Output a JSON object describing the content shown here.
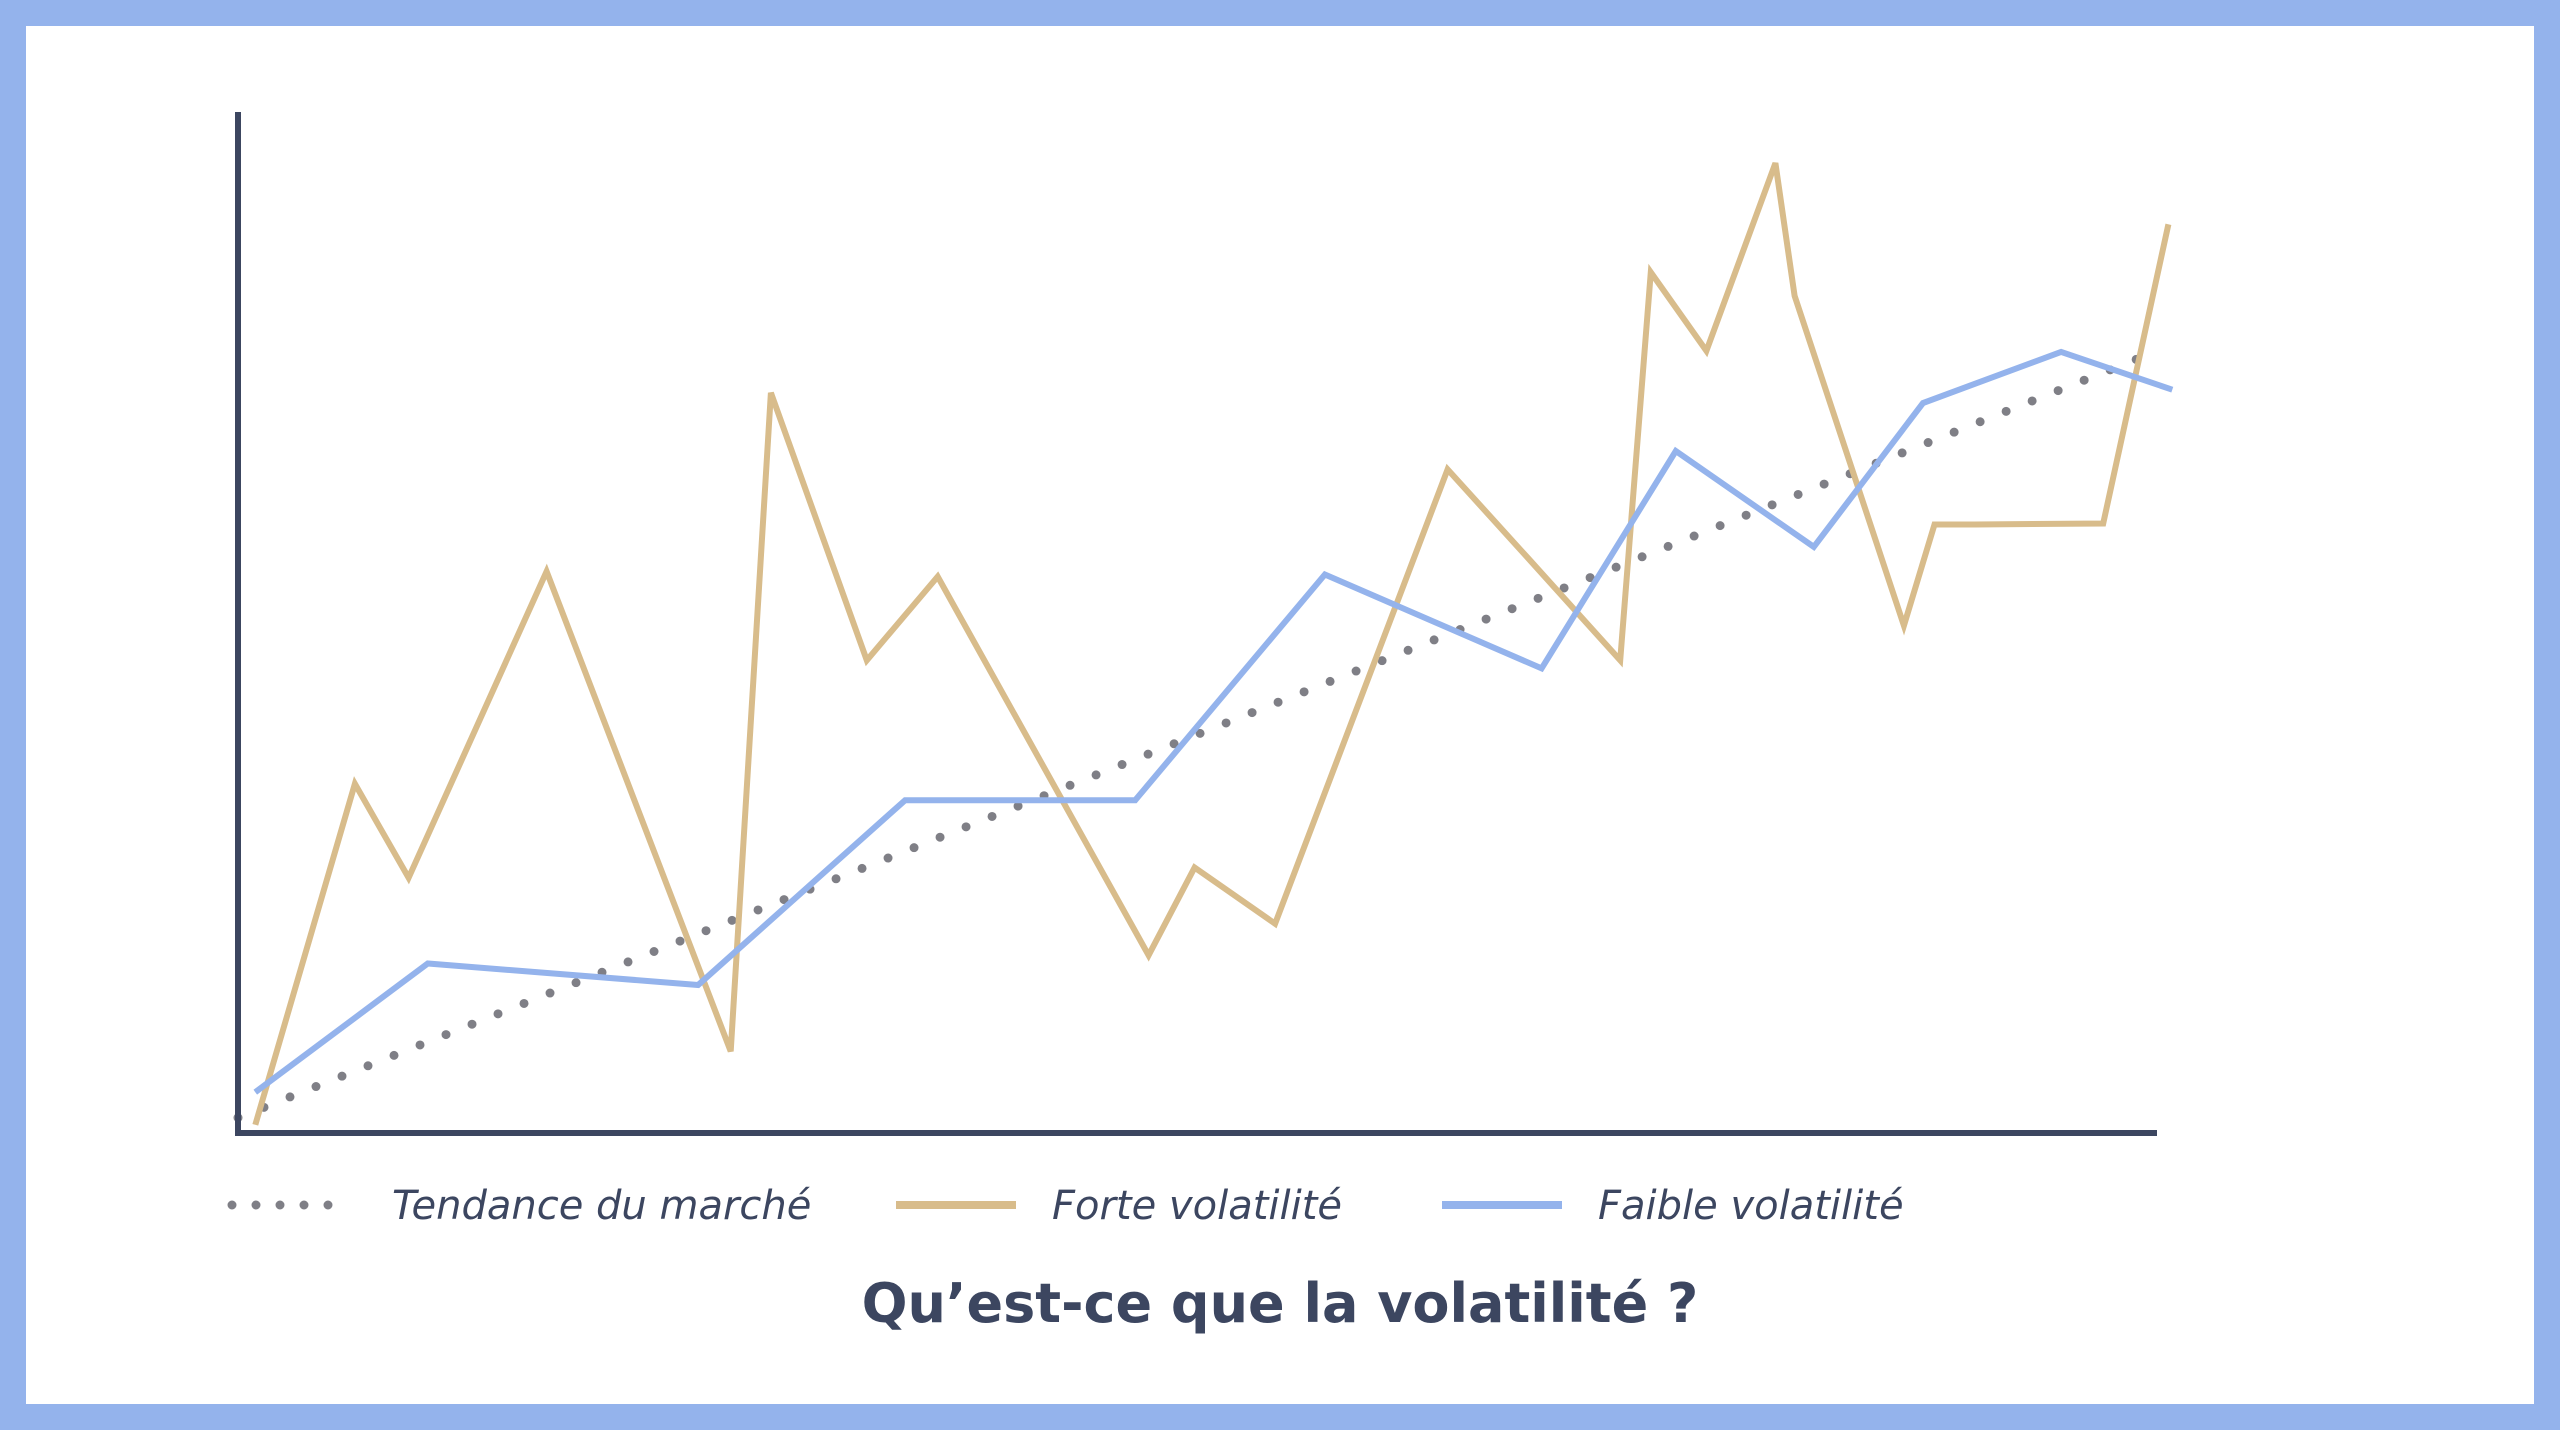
{
  "chart_data": {
    "type": "line",
    "title": "Qu’est-ce que la volatilité ?",
    "xlabel": "",
    "ylabel": "",
    "xlim": [
      0,
      100
    ],
    "ylim": [
      0,
      100
    ],
    "grid": false,
    "legend_position": "bottom",
    "series": [
      {
        "name": "Tendance du marché",
        "style": "dotted",
        "color": "#7f7f86",
        "x": [
          0,
          100
        ],
        "y": [
          1.5,
          76.5
        ]
      },
      {
        "name": "Forte volatilité",
        "style": "solid",
        "color": "#d8bc8b",
        "x": [
          0.9,
          6.1,
          8.9,
          16.1,
          25.7,
          27.8,
          32.8,
          36.5,
          47.5,
          49.9,
          54.1,
          63.1,
          67.3,
          72.1,
          73.7,
          76.6,
          80.2,
          81.2,
          86.9,
          88.5,
          90.6,
          97.3,
          100.7
        ],
        "y": [
          0.8,
          34.2,
          25.0,
          55.0,
          8.0,
          72.5,
          46.3,
          54.5,
          17.4,
          26.0,
          20.5,
          65.0,
          56.3,
          46.3,
          84.3,
          76.6,
          95.0,
          82.0,
          49.7,
          59.6,
          59.6,
          59.7,
          89.0
        ]
      },
      {
        "name": "Faible volatilité",
        "style": "solid",
        "color": "#94b3ec",
        "x": [
          0.9,
          9.9,
          24.0,
          34.8,
          46.8,
          56.7,
          68.0,
          75.0,
          82.2,
          87.9,
          95.1,
          100.9
        ],
        "y": [
          4.0,
          16.6,
          14.5,
          32.6,
          32.6,
          54.7,
          45.5,
          66.8,
          57.4,
          71.5,
          76.5,
          72.8
        ]
      }
    ]
  }
}
